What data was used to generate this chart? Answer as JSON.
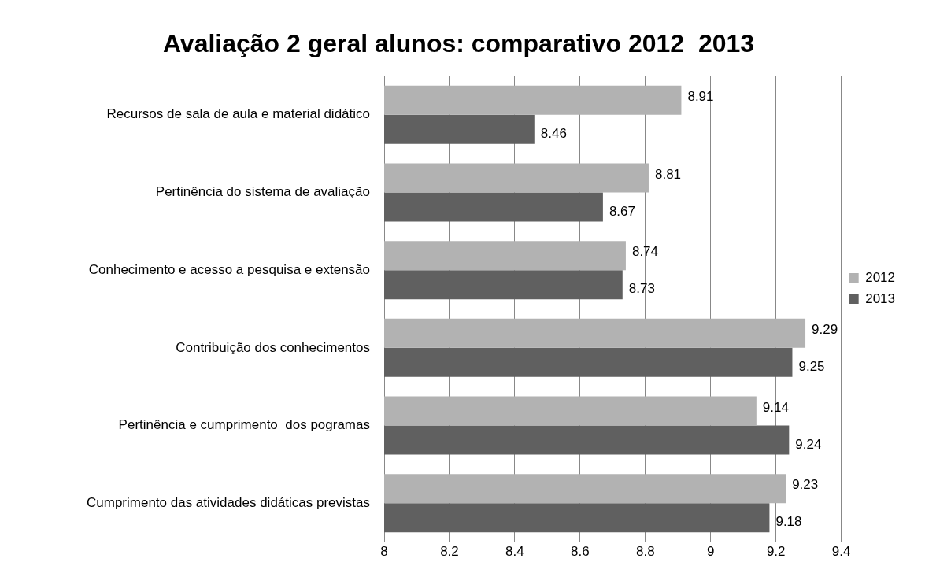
{
  "chart_data": {
    "type": "bar",
    "orientation": "horizontal",
    "title": "Avaliação 2 geral alunos: comparativo 2012  2013",
    "categories": [
      "Recursos de sala de aula e material didático",
      "Pertinência do sistema de avaliação",
      "Conhecimento e acesso a pesquisa e extensão",
      "Contribuição dos conhecimentos",
      "Pertinência e cumprimento  dos pogramas",
      "Cumprimento das atividades didáticas previstas"
    ],
    "series": [
      {
        "name": "2012",
        "color": "#b2b2b2",
        "values": [
          8.91,
          8.81,
          8.74,
          9.29,
          9.14,
          9.23
        ]
      },
      {
        "name": "2013",
        "color": "#606060",
        "values": [
          8.46,
          8.67,
          8.73,
          9.25,
          9.24,
          9.18
        ]
      }
    ],
    "xlim": [
      8,
      9.4
    ],
    "xticks": [
      8,
      8.2,
      8.4,
      8.6,
      8.8,
      9,
      9.2,
      9.4
    ],
    "grid": "x",
    "legend": "right",
    "data_labels": true
  }
}
